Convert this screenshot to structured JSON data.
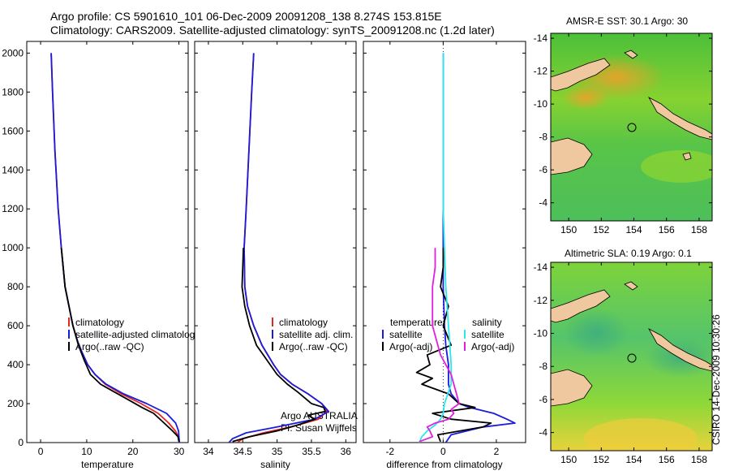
{
  "header": {
    "line1": "Argo profile: CS 5901610_101 06-Dec-2009 20091208_138 8.274S 153.815E",
    "line2": "Climatology: CARS2009. Satellite-adjusted climatology: synTS_20091208.nc (1.2d later)"
  },
  "colors": {
    "red": "#e8251e",
    "blue": "#1b1bdc",
    "black": "#000000",
    "cyan": "#28e8ee",
    "magenta": "#e01fe0",
    "land": "#f0c8a0"
  },
  "chart_data": [
    {
      "type": "line",
      "id": "temperature",
      "xlabel": "temperature",
      "ylabel": "",
      "xlim": [
        -3,
        32
      ],
      "ylim": [
        2060,
        0
      ],
      "xticks": [
        0,
        10,
        20,
        30
      ],
      "yticks": [
        0,
        200,
        400,
        600,
        800,
        1000,
        1200,
        1400,
        1600,
        1800,
        2000
      ],
      "legend": [
        "climatology",
        "satellite-adjusted climatolog",
        "Argo(..raw -QC)"
      ],
      "series": [
        {
          "name": "climatology",
          "color": "red",
          "depth": [
            0,
            30,
            60,
            100,
            150,
            200,
            250,
            300,
            350,
            400,
            500,
            600,
            800,
            1000,
            1200,
            1500,
            1800,
            2000
          ],
          "values": [
            30.1,
            29.9,
            29.2,
            27.8,
            25.5,
            21.8,
            17.5,
            14.0,
            11.8,
            10.2,
            8.3,
            7.0,
            5.3,
            4.5,
            3.8,
            3.1,
            2.6,
            2.3
          ]
        },
        {
          "name": "satellite-adjusted climatology",
          "color": "blue",
          "depth": [
            0,
            30,
            60,
            100,
            150,
            200,
            250,
            300,
            350,
            400,
            500,
            600,
            800,
            1000,
            1200,
            1500,
            1800,
            2000
          ],
          "values": [
            30.1,
            30.0,
            29.9,
            29.3,
            27.3,
            23.0,
            18.0,
            14.2,
            11.8,
            10.2,
            8.3,
            7.0,
            5.3,
            4.5,
            3.8,
            3.1,
            2.6,
            2.3
          ]
        },
        {
          "name": "Argo(..raw -QC)",
          "color": "black",
          "depth": [
            5,
            30,
            60,
            100,
            150,
            180,
            220,
            260,
            300,
            350,
            420,
            500,
            600,
            800,
            1000
          ],
          "values": [
            30.0,
            29.8,
            28.6,
            26.8,
            24.5,
            22.0,
            19.0,
            16.0,
            13.0,
            10.8,
            9.5,
            8.2,
            7.0,
            5.3,
            4.5
          ]
        }
      ]
    },
    {
      "type": "line",
      "id": "salinity",
      "xlabel": "salinity",
      "ylabel": "",
      "xlim": [
        33.8,
        36.15
      ],
      "ylim": [
        2060,
        0
      ],
      "xticks": [
        34,
        34.5,
        35,
        35.5,
        36
      ],
      "yticks": [
        0,
        200,
        400,
        600,
        800,
        1000,
        1200,
        1400,
        1600,
        1800,
        2000
      ],
      "legend": [
        "climatology",
        "satellite adj. clim.",
        "Argo(..raw -QC)"
      ],
      "series": [
        {
          "name": "climatology",
          "color": "red",
          "depth": [
            0,
            20,
            50,
            80,
            120,
            160,
            200,
            250,
            300,
            350,
            400,
            500,
            600,
            700,
            800,
            1000,
            1200,
            1500,
            1800,
            2000
          ],
          "values": [
            34.42,
            34.5,
            34.8,
            35.2,
            35.6,
            35.72,
            35.65,
            35.45,
            35.22,
            35.05,
            34.95,
            34.78,
            34.66,
            34.57,
            34.53,
            34.52,
            34.55,
            34.59,
            34.63,
            34.66
          ]
        },
        {
          "name": "satellite adj. clim.",
          "color": "blue",
          "depth": [
            0,
            20,
            50,
            80,
            120,
            160,
            200,
            250,
            300,
            350,
            400,
            500,
            600,
            700,
            800,
            1000,
            1200,
            1500,
            1800,
            2000
          ],
          "values": [
            34.3,
            34.35,
            34.55,
            35.0,
            35.55,
            35.75,
            35.65,
            35.45,
            35.22,
            35.05,
            34.95,
            34.78,
            34.66,
            34.57,
            34.53,
            34.52,
            34.55,
            34.59,
            34.63,
            34.66
          ]
        },
        {
          "name": "Argo(..raw -QC)",
          "color": "black",
          "depth": [
            5,
            30,
            60,
            90,
            120,
            140,
            160,
            180,
            200,
            230,
            260,
            300,
            350,
            400,
            450,
            500,
            600,
            700,
            800,
            900,
            1000
          ],
          "values": [
            34.35,
            34.6,
            35.0,
            35.3,
            35.55,
            35.45,
            35.7,
            35.68,
            35.5,
            35.4,
            35.3,
            35.15,
            35.0,
            34.9,
            34.8,
            34.7,
            34.6,
            34.53,
            34.49,
            34.5,
            34.51
          ]
        }
      ],
      "annotations": [
        "Argo AUSTRALIA",
        "PI: Susan Wijffels"
      ]
    },
    {
      "type": "line",
      "id": "difference",
      "xlabel": "difference from climatology",
      "ylabel": "",
      "xlim": [
        -3,
        3.1
      ],
      "ylim": [
        2060,
        0
      ],
      "xticks": [
        -2,
        0,
        2
      ],
      "yticks": [
        0,
        200,
        400,
        600,
        800,
        1000,
        1200,
        1400,
        1600,
        1800,
        2000
      ],
      "legend_temperature": [
        "temperature",
        "satellite",
        "Argo(-adj)"
      ],
      "legend_salinity": [
        "salinity",
        "satellite",
        "Argo(-adj)"
      ],
      "series": [
        {
          "name": "temperature satellite",
          "color": "blue",
          "depth": [
            0,
            40,
            80,
            100,
            120,
            150,
            180,
            200,
            250,
            300,
            400,
            500,
            600,
            800,
            1000,
            1200,
            1500,
            2000
          ],
          "values": [
            0.1,
            0.3,
            1.5,
            2.7,
            2.4,
            1.9,
            1.0,
            0.6,
            0.3,
            0.2,
            0.2,
            0.1,
            0.05,
            0.0,
            0.0,
            0.0,
            0.0,
            0.0
          ]
        },
        {
          "name": "temperature Argo(-adj)",
          "color": "black",
          "depth": [
            5,
            40,
            80,
            100,
            120,
            150,
            180,
            200,
            250,
            300,
            330,
            360,
            400,
            450,
            500,
            600,
            700,
            800,
            900,
            1000
          ],
          "values": [
            -0.1,
            -0.2,
            1.5,
            1.8,
            0.3,
            -0.4,
            1.2,
            0.6,
            0.2,
            -0.8,
            -0.4,
            -1.0,
            -0.5,
            -0.6,
            0.3,
            0.0,
            0.2,
            -0.1,
            0.0,
            0.0
          ]
        },
        {
          "name": "salinity satellite",
          "color": "cyan",
          "depth": [
            0,
            30,
            60,
            90,
            120,
            150,
            200,
            300,
            400,
            500,
            600,
            800,
            1000,
            1200,
            1500,
            2000
          ],
          "values": [
            -0.9,
            -0.8,
            -0.6,
            -0.3,
            -0.1,
            0.0,
            0.05,
            0.3,
            0.3,
            0.25,
            0.2,
            0.1,
            0.05,
            0.0,
            0.0,
            0.0
          ]
        },
        {
          "name": "salinity Argo(-adj)",
          "color": "magenta",
          "depth": [
            5,
            30,
            60,
            80,
            100,
            120,
            150,
            170,
            200,
            250,
            300,
            350,
            400,
            450,
            500,
            600,
            700,
            800,
            900,
            1000
          ],
          "values": [
            -0.9,
            -0.4,
            -0.5,
            -0.6,
            -0.3,
            0.2,
            0.4,
            0.3,
            0.6,
            0.5,
            0.4,
            0.3,
            0.1,
            -0.1,
            -0.2,
            -0.4,
            -0.4,
            -0.4,
            -0.3,
            -0.3
          ]
        }
      ]
    },
    {
      "type": "heatmap",
      "id": "sst-map",
      "title": "AMSR-E SST: 30.1 Argo: 30",
      "xlim": [
        148.9,
        158.8
      ],
      "ylim": [
        -14.3,
        -2.9
      ],
      "xticks": [
        150,
        152,
        154,
        156,
        158
      ],
      "yticks": [
        -4,
        -6,
        -8,
        -10,
        -12,
        -14
      ],
      "marker": {
        "lon": 153.815,
        "lat": -8.274
      }
    },
    {
      "type": "heatmap",
      "id": "sla-map",
      "title": "Altimetric SLA: 0.19 Argo: 0.1",
      "xlim": [
        148.9,
        158.8
      ],
      "ylim": [
        -14.3,
        -2.9
      ],
      "xticks": [
        150,
        152,
        154,
        156,
        158
      ],
      "yticks": [
        -4,
        -6,
        -8,
        -10,
        -12,
        -14
      ],
      "marker": {
        "lon": 153.815,
        "lat": -8.274
      }
    }
  ],
  "stamp": "CSIRO 14-Dec-2009 10:30:26"
}
